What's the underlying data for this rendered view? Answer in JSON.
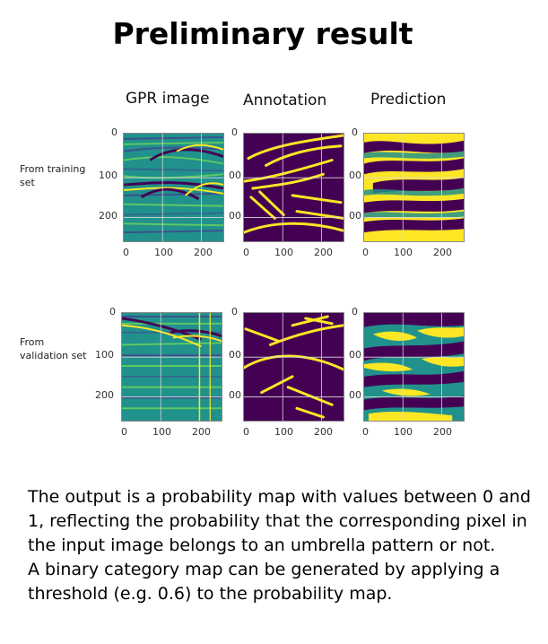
{
  "title": "Preliminary result",
  "columns": {
    "gpr": "GPR image",
    "annotation": "Annotation",
    "prediction": "Prediction"
  },
  "rows": {
    "training": "From training set",
    "validation": "From validation set"
  },
  "axes": {
    "x_ticks": [
      "0",
      "100",
      "200"
    ],
    "y_ticks": [
      "0",
      "100",
      "200"
    ],
    "y_ticks_clipped": [
      "0",
      "00",
      "00"
    ]
  },
  "colors": {
    "viridis_dark": "#440154",
    "viridis_teal": "#21918c",
    "viridis_yellow": "#fde725"
  },
  "description": {
    "line1": "The output is a probability map with values between 0 and 1, reflecting the probability that the corresponding pixel in the input image belongs to an umbrella pattern or not.",
    "line2": "A binary category map can be generated by applying a threshold (e.g. 0.6) to the probability map."
  }
}
